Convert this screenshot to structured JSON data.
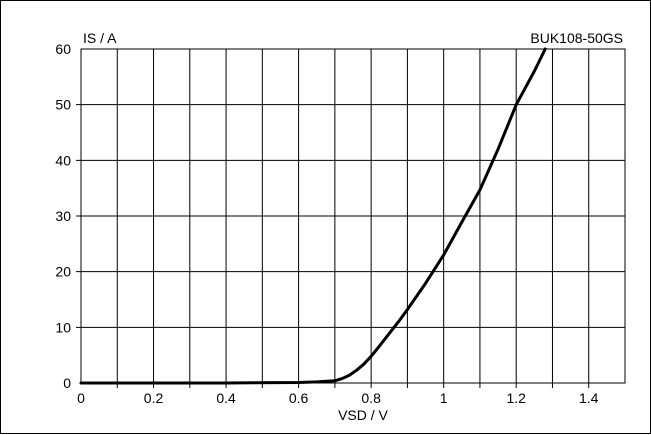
{
  "chart_data": {
    "type": "line",
    "title": "BUK108-50GS",
    "xlabel": "VSD / V",
    "ylabel": "IS / A",
    "xlim": [
      0,
      1.5
    ],
    "ylim": [
      0,
      60
    ],
    "xticks": [
      0,
      0.2,
      0.4,
      0.6,
      0.8,
      1,
      1.2,
      1.4
    ],
    "xtick_labels": [
      "0",
      "0.2",
      "0.4",
      "0.6",
      "0.8",
      "1",
      "1.2",
      "1.4"
    ],
    "yticks": [
      0,
      10,
      20,
      30,
      40,
      50,
      60
    ],
    "ytick_labels": [
      "0",
      "10",
      "20",
      "30",
      "40",
      "50",
      "60"
    ],
    "x_grid_step": 0.1,
    "grid": true,
    "legend": "none",
    "line_color": "#000000",
    "series": [
      {
        "x": [
          0,
          0.2,
          0.4,
          0.6,
          0.65,
          0.7,
          0.72,
          0.74,
          0.76,
          0.78,
          0.8,
          0.82,
          0.85,
          0.88,
          0.9,
          0.95,
          1.0,
          1.05,
          1.1,
          1.15,
          1.2,
          1.25,
          1.28
        ],
        "y": [
          0,
          0,
          0,
          0.1,
          0.2,
          0.4,
          0.8,
          1.4,
          2.3,
          3.4,
          4.8,
          6.4,
          8.9,
          11.4,
          13.2,
          17.9,
          23.0,
          28.9,
          34.7,
          42.0,
          50.0,
          56.0,
          60.0
        ]
      }
    ]
  }
}
